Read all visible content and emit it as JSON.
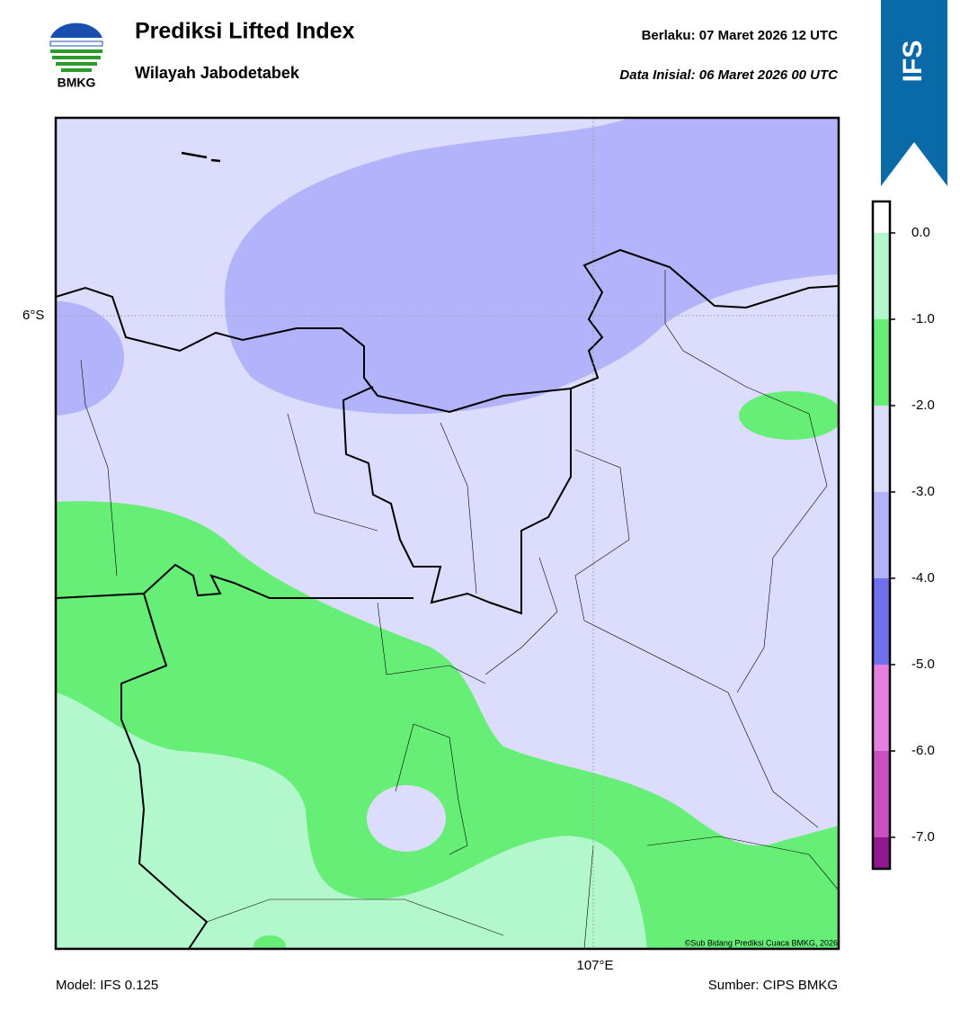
{
  "header": {
    "title": "Prediksi Lifted Index",
    "subtitle": "Wilayah Jabodetabek",
    "valid": "Berlaku:  07 Maret 2026 12 UTC",
    "init": "Data Inisial:  06 Maret 2026 00 UTC",
    "logo": "BMKG",
    "badge": "IFS"
  },
  "map": {
    "lat_label": "6°S",
    "lon_label": "107°E",
    "copyright": "©Sub Bidang Prediksi Cuaca BMKG, 2026"
  },
  "colorbar": {
    "ticks": [
      {
        "value": 0,
        "label": "0.0"
      },
      {
        "value": -1,
        "label": "-1.0"
      },
      {
        "value": -2,
        "label": "-2.0"
      },
      {
        "value": -3,
        "label": "-3.0"
      },
      {
        "value": -4,
        "label": "-4.0"
      },
      {
        "value": -5,
        "label": "-5.0"
      },
      {
        "value": -6,
        "label": "-6.0"
      },
      {
        "value": -7,
        "label": "-7.0"
      }
    ],
    "colors": [
      "#ffffff",
      "#b3f8cc",
      "#66ee77",
      "#dcdcfc",
      "#b3b3fc",
      "#7070ee",
      "#e680e0",
      "#c850c0",
      "#901890"
    ]
  },
  "footer": {
    "model": "Model: IFS 0.125",
    "source": "Sumber: CIPS BMKG"
  }
}
